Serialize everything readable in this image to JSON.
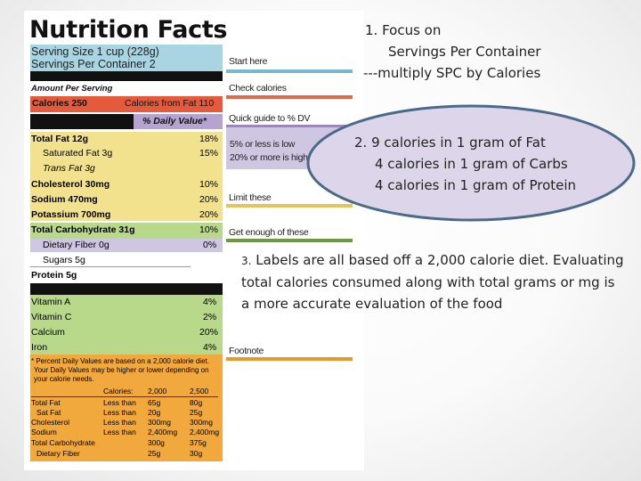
{
  "label": {
    "title": "Nutrition Facts",
    "serving_size": "Serving Size 1 cup (228g)",
    "servings_per_container": "Servings Per Container  2",
    "amount_per_serving": "Amount Per Serving",
    "calories": "Calories 250",
    "calories_from_fat": "Calories from Fat 110",
    "daily_value_header": "% Daily Value*",
    "rows": [
      {
        "name": "Total Fat 12g",
        "pct": "18%"
      },
      {
        "name": "Saturated Fat 3g",
        "pct": "15%"
      },
      {
        "name": "Trans Fat 3g",
        "pct": ""
      },
      {
        "name": "Cholesterol 30mg",
        "pct": "10%"
      },
      {
        "name": "Sodium 470mg",
        "pct": "20%"
      },
      {
        "name": "Potassium 700mg",
        "pct": "20%"
      },
      {
        "name": "Total Carbohydrate 31g",
        "pct": "10%"
      },
      {
        "name": "Dietary Fiber 0g",
        "pct": "0%"
      },
      {
        "name": "Sugars 5g",
        "pct": ""
      },
      {
        "name": "Protein 5g",
        "pct": ""
      }
    ],
    "vitamins": [
      {
        "name": "Vitamin A",
        "pct": "4%"
      },
      {
        "name": "Vitamin C",
        "pct": "2%"
      },
      {
        "name": "Calcium",
        "pct": "20%"
      },
      {
        "name": "Iron",
        "pct": "4%"
      }
    ],
    "footnote": [
      "* Percent Daily Values are based on a 2,000 calorie diet.",
      "Your Daily Values may be higher or lower depending on",
      "your calorie needs."
    ],
    "footnote_table": {
      "header": [
        "",
        "Calories:",
        "2,000",
        "2,500"
      ],
      "rows": [
        [
          "Total Fat",
          "Less than",
          "65g",
          "80g"
        ],
        [
          "Sat Fat",
          "Less than",
          "20g",
          "25g"
        ],
        [
          "Cholesterol",
          "Less than",
          "300mg",
          "300mg"
        ],
        [
          "Sodium",
          "Less than",
          "2,400mg",
          "2,400mg"
        ],
        [
          "Total Carbohydrate",
          "",
          "300g",
          "375g"
        ],
        [
          "Dietary Fiber",
          "",
          "25g",
          "30g"
        ]
      ]
    }
  },
  "callouts": [
    {
      "text": "Start here",
      "color": "#7ab8cc"
    },
    {
      "text": "Check calories",
      "color": "#e2684a"
    },
    {
      "text": "Quick guide to % DV",
      "color": "#9b87bb"
    },
    {
      "text": "5% or less is low",
      "color": ""
    },
    {
      "text": "20% or more is high",
      "color": ""
    },
    {
      "text": "Limit these",
      "color": "#e5c45e"
    },
    {
      "text": "Get enough of these",
      "color": "#6d9a3d"
    },
    {
      "text": "Footnote",
      "color": "#e69a2c"
    }
  ],
  "notes": {
    "n1_line1": "1.  Focus on",
    "n1_line2": "Servings Per Container",
    "n1_line3": "---multiply SPC by Calories",
    "n2_line1": "2.  9 calories in 1 gram of Fat",
    "n2_line2": "4 calories in 1 gram of Carbs",
    "n2_line3": "4 calories in 1 gram of Protein",
    "n3_num": "3.",
    "n3_text": "Labels are all based off a 2,000 calorie diet. Evaluating total calories consumed along with total grams or  mg is a more accurate evaluation of the food"
  },
  "colors": {
    "blue": "#a9d4e1",
    "red": "#e55a3a",
    "purple": "#b6a3cf",
    "yellow": "#f2e28e",
    "green": "#b8d88a",
    "lavender": "#cfc6e2",
    "orange": "#f1a83c",
    "ellipse_fill": "#ddd6ea",
    "ellipse_stroke": "#4a6a8a"
  }
}
